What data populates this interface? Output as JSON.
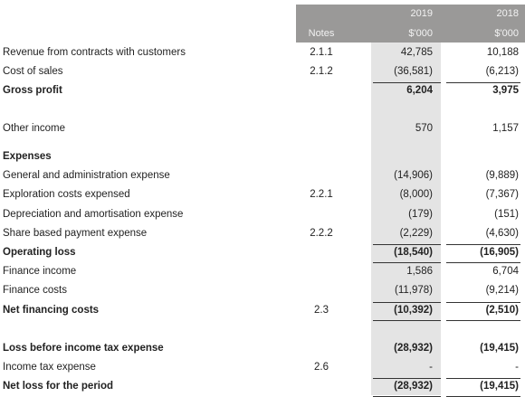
{
  "header": {
    "notes": "Notes",
    "years": [
      "2019",
      "2018"
    ],
    "units": [
      "$'000",
      "$'000"
    ]
  },
  "rows": [
    {
      "label": "Revenue from contracts with customers",
      "note": "2.1.1",
      "values": [
        "42,785",
        "10,188"
      ],
      "bold": false
    },
    {
      "label": "Cost of sales",
      "note": "2.1.2",
      "values": [
        "(36,581)",
        "(6,213)"
      ],
      "bold": false
    },
    {
      "label": "Gross profit",
      "note": null,
      "values": [
        "6,204",
        "3,975"
      ],
      "bold": true
    },
    {
      "label": "Other income",
      "note": null,
      "values": [
        "570",
        "1,157"
      ],
      "bold": false
    },
    {
      "label": "Expenses",
      "note": null,
      "values": [
        null,
        null
      ],
      "bold": true
    },
    {
      "label": "General and administration expense",
      "note": null,
      "values": [
        "(14,906)",
        "(9,889)"
      ],
      "bold": false
    },
    {
      "label": "Exploration costs expensed",
      "note": "2.2.1",
      "values": [
        "(8,000)",
        "(7,367)"
      ],
      "bold": false
    },
    {
      "label": "Depreciation and amortisation expense",
      "note": null,
      "values": [
        "(179)",
        "(151)"
      ],
      "bold": false
    },
    {
      "label": "Share based payment expense",
      "note": "2.2.2",
      "values": [
        "(2,229)",
        "(4,630)"
      ],
      "bold": false
    },
    {
      "label": "Operating loss",
      "note": null,
      "values": [
        "(18,540)",
        "(16,905)"
      ],
      "bold": true
    },
    {
      "label": "Finance income",
      "note": null,
      "values": [
        "1,586",
        "6,704"
      ],
      "bold": false
    },
    {
      "label": "Finance costs",
      "note": null,
      "values": [
        "(11,978)",
        "(9,214)"
      ],
      "bold": false
    },
    {
      "label": "Net financing costs",
      "note": "2.3",
      "values": [
        "(10,392)",
        "(2,510)"
      ],
      "bold": true
    },
    {
      "label": "Loss before income tax expense",
      "note": null,
      "values": [
        "(28,932)",
        "(19,415)"
      ],
      "bold": true
    },
    {
      "label": "Income tax expense",
      "note": "2.6",
      "values": [
        "-",
        "-"
      ],
      "bold": false
    },
    {
      "label": "Net loss for the period",
      "note": null,
      "values": [
        "(28,932)",
        "(19,415)"
      ],
      "bold": true
    }
  ]
}
